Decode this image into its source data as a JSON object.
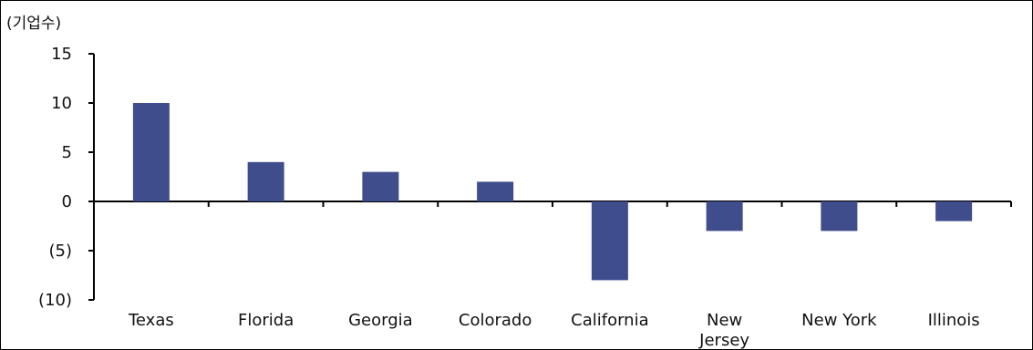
{
  "chart_data": {
    "type": "bar",
    "ylabel": "(기업수)",
    "categories": [
      [
        "Texas"
      ],
      [
        "Florida"
      ],
      [
        "Georgia"
      ],
      [
        "Colorado"
      ],
      [
        "California"
      ],
      [
        "New",
        "Jersey"
      ],
      [
        "New York"
      ],
      [
        "Illinois"
      ]
    ],
    "values": [
      10,
      4,
      3,
      2,
      -8,
      -3,
      -3,
      -2
    ],
    "ylim": [
      -10,
      15
    ],
    "yticks": [
      15,
      10,
      5,
      0,
      -5,
      -10
    ],
    "ytick_labels": [
      "15",
      "10",
      "5",
      "0",
      "(5)",
      "(10)"
    ],
    "grid": false,
    "legend": "none",
    "colors": {
      "bar": "#3f4d8c",
      "axis": "#000000"
    }
  }
}
